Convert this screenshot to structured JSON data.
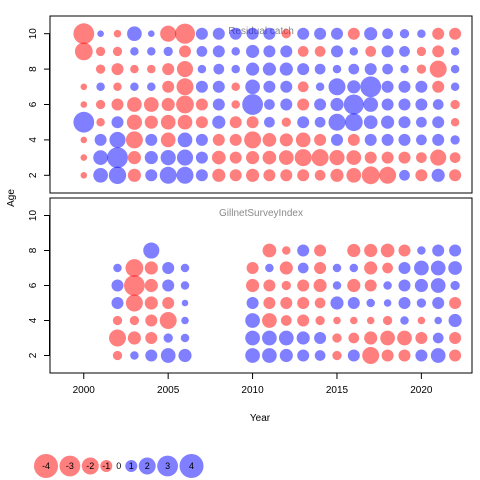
{
  "chart_data": {
    "type": "scatter",
    "subtype": "bubble",
    "xlabel": "Year",
    "ylabel": "Age",
    "xlim": [
      1998,
      2023
    ],
    "x_ticks": [
      2000,
      2005,
      2010,
      2015,
      2020
    ],
    "y_ticks": [
      2,
      4,
      6,
      8,
      10
    ],
    "grid": false,
    "colors": {
      "positive": "#0000FF",
      "negative": "#FF0000",
      "alpha": 0.5
    },
    "legend": {
      "placement": "bottom-left",
      "values": [
        -4,
        -3,
        -2,
        -1,
        0,
        1,
        2,
        3,
        4
      ],
      "labels": [
        "-4",
        "-3",
        "-2",
        "-1",
        "0",
        "1",
        "2",
        "3",
        "4"
      ]
    },
    "panels": [
      {
        "title": "Residual catch",
        "ylim": [
          1,
          11
        ],
        "years": [
          2000,
          2001,
          2002,
          2003,
          2004,
          2005,
          2006,
          2007,
          2008,
          2009,
          2010,
          2011,
          2012,
          2013,
          2014,
          2015,
          2016,
          2017,
          2018,
          2019,
          2020,
          2021,
          2022
        ],
        "ages": [
          2,
          3,
          4,
          5,
          6,
          7,
          8,
          9,
          10
        ],
        "residuals": [
          [
            -0.3,
            1.5,
            2.1,
            -1.2,
            1.0,
            2.0,
            2.0,
            1.0,
            -1.2,
            -1.0,
            -1.2,
            -1.0,
            -1.0,
            -1.0,
            -0.8,
            -1.2,
            -1.5,
            -2.2,
            -2.0,
            0.8,
            -1.0,
            1.2,
            -1.0
          ],
          [
            -0.3,
            1.5,
            3.0,
            -1.2,
            1.2,
            1.6,
            1.8,
            1.0,
            -1.3,
            -1.0,
            -1.2,
            -1.3,
            -1.5,
            -2.0,
            -2.0,
            -1.6,
            -1.5,
            -1.0,
            -1.0,
            -1.0,
            -0.8,
            -1.8,
            -0.8
          ],
          [
            -0.3,
            1.0,
            1.8,
            -2.0,
            1.0,
            -1.5,
            1.5,
            1.0,
            -1.0,
            -1.0,
            -2.0,
            -1.3,
            -1.2,
            -1.5,
            -1.0,
            1.0,
            -1.0,
            1.0,
            1.0,
            1.0,
            0.8,
            1.0,
            0.6
          ],
          [
            3.0,
            -0.5,
            1.0,
            -1.6,
            -1.2,
            -1.5,
            -1.5,
            -1.0,
            1.2,
            -1.0,
            -1.0,
            0.8,
            -0.6,
            1.0,
            0.8,
            2.0,
            2.2,
            1.3,
            1.2,
            1.0,
            0.8,
            1.0,
            -0.5
          ],
          [
            -0.3,
            -0.6,
            -1.0,
            -1.5,
            -1.5,
            -1.2,
            -2.2,
            -1.0,
            1.0,
            -0.5,
            3.0,
            0.8,
            1.0,
            -1.0,
            1.0,
            1.2,
            2.8,
            1.5,
            1.0,
            1.0,
            1.0,
            0.8,
            -0.6
          ],
          [
            -0.3,
            0.5,
            -0.5,
            0.5,
            0.5,
            -1.0,
            -2.0,
            1.0,
            1.0,
            -0.5,
            1.5,
            1.0,
            1.0,
            -0.8,
            0.5,
            2.0,
            1.2,
            3.0,
            1.0,
            1.0,
            1.0,
            -1.0,
            0.5
          ],
          [
            0,
            -0.6,
            -1.0,
            -0.5,
            -0.5,
            -1.0,
            -1.8,
            0.5,
            0.8,
            0.5,
            1.2,
            1.2,
            1.2,
            1.0,
            0.8,
            0.5,
            0.8,
            1.0,
            0.8,
            0.5,
            -0.6,
            -2.0,
            0.5
          ],
          [
            -2.2,
            -0.6,
            -0.6,
            0.5,
            0.5,
            0.6,
            -1.0,
            0.8,
            1.0,
            0.5,
            1.2,
            1.0,
            1.0,
            -0.8,
            -0.8,
            1.0,
            0.5,
            -0.8,
            1.0,
            0.8,
            -0.6,
            -1.0,
            0.5
          ],
          [
            -3.0,
            0.3,
            -0.4,
            1.5,
            0.3,
            -1.8,
            -2.8,
            1.0,
            1.0,
            1.0,
            1.0,
            1.0,
            -0.6,
            1.0,
            1.0,
            1.0,
            -1.0,
            1.2,
            0.8,
            0.6,
            0.5,
            -1.0,
            -1.0
          ]
        ]
      },
      {
        "title": "GillnetSurveyIndex",
        "ylim": [
          1,
          11
        ],
        "years": [
          2002,
          2003,
          2004,
          2005,
          2006,
          2010,
          2011,
          2012,
          2013,
          2014,
          2015,
          2016,
          2017,
          2018,
          2019,
          2020,
          2021,
          2022
        ],
        "ages": [
          2,
          3,
          4,
          5,
          6,
          7,
          8
        ],
        "residuals": [
          [
            -0.6,
            0.5,
            1.0,
            1.5,
            1.2,
            1.5,
            1.5,
            1.2,
            1.0,
            0.8,
            -0.6,
            1.0,
            -2.0,
            -1.0,
            -1.0,
            1.0,
            1.5,
            -1.0
          ],
          [
            -2.0,
            -1.2,
            -1.0,
            0.6,
            0.5,
            1.5,
            1.5,
            1.5,
            1.2,
            1.0,
            -0.6,
            -0.8,
            -1.2,
            -1.5,
            -1.5,
            -1.0,
            0.8,
            -1.0
          ],
          [
            -0.6,
            -0.6,
            -1.0,
            -2.0,
            0.4,
            1.5,
            -1.5,
            -0.8,
            -1.0,
            -0.6,
            -0.4,
            -0.4,
            -0.4,
            -0.6,
            0.5,
            -0.4,
            0.4,
            1.2
          ],
          [
            1.0,
            -2.0,
            -1.2,
            -1.0,
            0.3,
            1.0,
            -1.0,
            -1.0,
            -1.0,
            -0.8,
            1.2,
            1.0,
            0.5,
            0.4,
            1.0,
            0.6,
            1.0,
            -1.0
          ],
          [
            1.0,
            -3.0,
            -1.2,
            1.0,
            0.5,
            -1.2,
            -1.0,
            -0.6,
            -1.0,
            -1.2,
            0.5,
            -1.2,
            -1.0,
            0.5,
            1.0,
            1.2,
            1.5,
            0.6
          ],
          [
            0.5,
            -2.2,
            -1.2,
            1.0,
            0.5,
            -1.0,
            0.5,
            -1.2,
            0.8,
            -1.0,
            0.5,
            0.5,
            -1.2,
            -0.8,
            1.0,
            1.5,
            1.5,
            1.3
          ],
          [
            0,
            0,
            1.8,
            0,
            0,
            0,
            -1.3,
            -0.5,
            1.0,
            -1.0,
            0,
            -1.2,
            -1.2,
            -1.3,
            -1.0,
            0.5,
            1.0,
            1.0
          ]
        ]
      }
    ]
  }
}
